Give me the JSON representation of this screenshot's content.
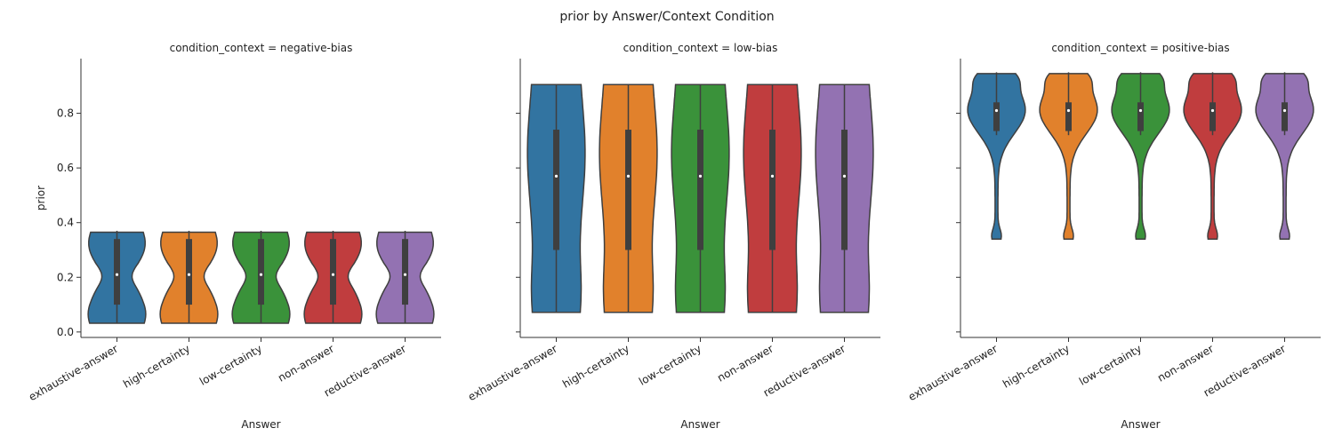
{
  "chart_data": {
    "type": "violin",
    "title": "prior by Answer/Context Condition",
    "xlabel": "Answer",
    "ylabel": "prior",
    "ylim": [
      -0.02,
      1.0
    ],
    "yticks": [
      0.0,
      0.2,
      0.4,
      0.6,
      0.8
    ],
    "ytick_labels": [
      "0.0",
      "0.2",
      "0.4",
      "0.6",
      "0.8"
    ],
    "categories": [
      "exhaustive-answer",
      "high-certainty",
      "low-certainty",
      "non-answer",
      "reductive-answer"
    ],
    "colors": [
      "#3274a1",
      "#e1812c",
      "#3a923a",
      "#c03d3e",
      "#9372b2"
    ],
    "panels": [
      {
        "title": "condition_context = negative-bias",
        "violins": [
          {
            "category": "exhaustive-answer",
            "min": 0.032,
            "max": 0.365,
            "q1": 0.1,
            "median": 0.21,
            "q3": 0.34,
            "whisker_low": 0.032,
            "whisker_high": 0.37
          },
          {
            "category": "high-certainty",
            "min": 0.032,
            "max": 0.365,
            "q1": 0.1,
            "median": 0.21,
            "q3": 0.34,
            "whisker_low": 0.032,
            "whisker_high": 0.37
          },
          {
            "category": "low-certainty",
            "min": 0.032,
            "max": 0.365,
            "q1": 0.1,
            "median": 0.21,
            "q3": 0.34,
            "whisker_low": 0.032,
            "whisker_high": 0.37
          },
          {
            "category": "non-answer",
            "min": 0.032,
            "max": 0.365,
            "q1": 0.1,
            "median": 0.21,
            "q3": 0.34,
            "whisker_low": 0.032,
            "whisker_high": 0.37
          },
          {
            "category": "reductive-answer",
            "min": 0.032,
            "max": 0.365,
            "q1": 0.1,
            "median": 0.21,
            "q3": 0.34,
            "whisker_low": 0.032,
            "whisker_high": 0.37
          }
        ]
      },
      {
        "title": "condition_context = low-bias",
        "violins": [
          {
            "category": "exhaustive-answer",
            "min": 0.072,
            "max": 0.905,
            "q1": 0.3,
            "median": 0.57,
            "q3": 0.74,
            "whisker_low": 0.072,
            "whisker_high": 0.905
          },
          {
            "category": "high-certainty",
            "min": 0.072,
            "max": 0.905,
            "q1": 0.3,
            "median": 0.57,
            "q3": 0.74,
            "whisker_low": 0.072,
            "whisker_high": 0.905
          },
          {
            "category": "low-certainty",
            "min": 0.072,
            "max": 0.905,
            "q1": 0.3,
            "median": 0.57,
            "q3": 0.74,
            "whisker_low": 0.072,
            "whisker_high": 0.905
          },
          {
            "category": "non-answer",
            "min": 0.072,
            "max": 0.905,
            "q1": 0.3,
            "median": 0.57,
            "q3": 0.74,
            "whisker_low": 0.072,
            "whisker_high": 0.905
          },
          {
            "category": "reductive-answer",
            "min": 0.072,
            "max": 0.905,
            "q1": 0.3,
            "median": 0.57,
            "q3": 0.74,
            "whisker_low": 0.072,
            "whisker_high": 0.905
          }
        ]
      },
      {
        "title": "condition_context = positive-bias",
        "violins": [
          {
            "category": "exhaustive-answer",
            "min": 0.34,
            "max": 0.945,
            "q1": 0.735,
            "median": 0.81,
            "q3": 0.84,
            "whisker_low": 0.72,
            "whisker_high": 0.95
          },
          {
            "category": "high-certainty",
            "min": 0.34,
            "max": 0.945,
            "q1": 0.735,
            "median": 0.81,
            "q3": 0.84,
            "whisker_low": 0.72,
            "whisker_high": 0.95
          },
          {
            "category": "low-certainty",
            "min": 0.34,
            "max": 0.945,
            "q1": 0.735,
            "median": 0.81,
            "q3": 0.84,
            "whisker_low": 0.72,
            "whisker_high": 0.95
          },
          {
            "category": "non-answer",
            "min": 0.34,
            "max": 0.945,
            "q1": 0.735,
            "median": 0.81,
            "q3": 0.84,
            "whisker_low": 0.72,
            "whisker_high": 0.95
          },
          {
            "category": "reductive-answer",
            "min": 0.34,
            "max": 0.945,
            "q1": 0.735,
            "median": 0.81,
            "q3": 0.84,
            "whisker_low": 0.72,
            "whisker_high": 0.95
          }
        ]
      }
    ]
  }
}
